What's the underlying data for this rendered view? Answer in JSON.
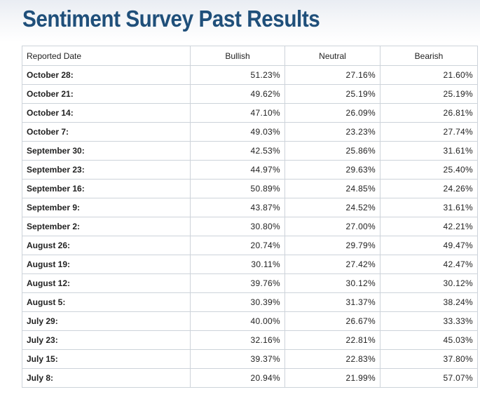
{
  "page": {
    "title": "Sentiment Survey Past Results"
  },
  "table": {
    "headers": {
      "date": "Reported Date",
      "bullish": "Bullish",
      "neutral": "Neutral",
      "bearish": "Bearish"
    },
    "rows": [
      {
        "date": "October 28:",
        "bullish": "51.23%",
        "neutral": "27.16%",
        "bearish": "21.60%"
      },
      {
        "date": "October 21:",
        "bullish": "49.62%",
        "neutral": "25.19%",
        "bearish": "25.19%"
      },
      {
        "date": "October 14:",
        "bullish": "47.10%",
        "neutral": "26.09%",
        "bearish": "26.81%"
      },
      {
        "date": "October 7:",
        "bullish": "49.03%",
        "neutral": "23.23%",
        "bearish": "27.74%"
      },
      {
        "date": "September 30:",
        "bullish": "42.53%",
        "neutral": "25.86%",
        "bearish": "31.61%"
      },
      {
        "date": "September 23:",
        "bullish": "44.97%",
        "neutral": "29.63%",
        "bearish": "25.40%"
      },
      {
        "date": "September 16:",
        "bullish": "50.89%",
        "neutral": "24.85%",
        "bearish": "24.26%"
      },
      {
        "date": "September 9:",
        "bullish": "43.87%",
        "neutral": "24.52%",
        "bearish": "31.61%"
      },
      {
        "date": "September 2:",
        "bullish": "30.80%",
        "neutral": "27.00%",
        "bearish": "42.21%"
      },
      {
        "date": "August 26:",
        "bullish": "20.74%",
        "neutral": "29.79%",
        "bearish": "49.47%"
      },
      {
        "date": "August 19:",
        "bullish": "30.11%",
        "neutral": "27.42%",
        "bearish": "42.47%"
      },
      {
        "date": "August 12:",
        "bullish": "39.76%",
        "neutral": "30.12%",
        "bearish": "30.12%"
      },
      {
        "date": "August 5:",
        "bullish": "30.39%",
        "neutral": "31.37%",
        "bearish": "38.24%"
      },
      {
        "date": "July 29:",
        "bullish": "40.00%",
        "neutral": "26.67%",
        "bearish": "33.33%"
      },
      {
        "date": "July 23:",
        "bullish": "32.16%",
        "neutral": "22.81%",
        "bearish": "45.03%"
      },
      {
        "date": "July 15:",
        "bullish": "39.37%",
        "neutral": "22.83%",
        "bearish": "37.80%"
      },
      {
        "date": "July 8:",
        "bullish": "20.94%",
        "neutral": "21.99%",
        "bearish": "57.07%"
      }
    ]
  }
}
